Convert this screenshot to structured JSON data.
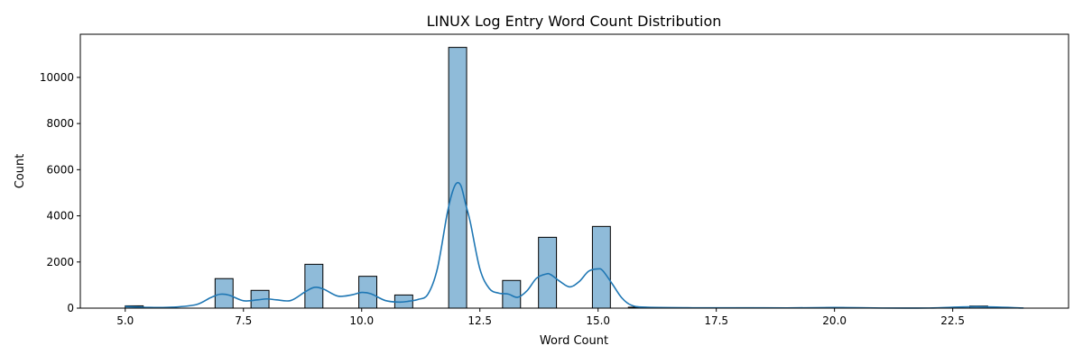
{
  "chart_data": {
    "type": "bar",
    "title": "LINUX Log Entry Word Count Distribution",
    "xlabel": "Word Count",
    "ylabel": "Count",
    "xlim": [
      4.05,
      24.95
    ],
    "ylim": [
      0,
      11870
    ],
    "x_ticks": [
      5.0,
      7.5,
      10.0,
      12.5,
      15.0,
      17.5,
      20.0,
      22.5
    ],
    "x_tick_labels": [
      "5.0",
      "7.5",
      "10.0",
      "12.5",
      "15.0",
      "17.5",
      "20.0",
      "22.5"
    ],
    "y_ticks": [
      0,
      2000,
      4000,
      6000,
      8000,
      10000
    ],
    "y_tick_labels": [
      "0",
      "2000",
      "4000",
      "6000",
      "8000",
      "10000"
    ],
    "bin_width": 0.38,
    "bins": [
      {
        "x0": 5.0,
        "count": 100
      },
      {
        "x0": 6.9,
        "count": 1280
      },
      {
        "x0": 7.66,
        "count": 770
      },
      {
        "x0": 8.8,
        "count": 1900
      },
      {
        "x0": 9.94,
        "count": 1380
      },
      {
        "x0": 10.7,
        "count": 570
      },
      {
        "x0": 11.84,
        "count": 11300
      },
      {
        "x0": 12.98,
        "count": 1200
      },
      {
        "x0": 13.74,
        "count": 3070
      },
      {
        "x0": 14.88,
        "count": 3540
      },
      {
        "x0": 15.64,
        "count": 40
      },
      {
        "x0": 16.78,
        "count": 15
      },
      {
        "x0": 17.92,
        "count": 20
      },
      {
        "x0": 19.82,
        "count": 25
      },
      {
        "x0": 22.86,
        "count": 90
      }
    ],
    "kde": {
      "x": [
        5.0,
        5.5,
        6.0,
        6.5,
        6.8,
        7.0,
        7.2,
        7.5,
        7.8,
        8.0,
        8.2,
        8.5,
        8.8,
        9.0,
        9.2,
        9.5,
        9.8,
        10.0,
        10.2,
        10.5,
        10.8,
        11.0,
        11.2,
        11.4,
        11.6,
        11.8,
        11.9,
        12.0,
        12.1,
        12.2,
        12.3,
        12.5,
        12.7,
        12.9,
        13.1,
        13.3,
        13.5,
        13.7,
        13.9,
        14.0,
        14.2,
        14.4,
        14.6,
        14.8,
        15.0,
        15.1,
        15.3,
        15.5,
        15.7,
        16.0,
        17.0,
        18.0,
        19.0,
        20.0,
        21.0,
        22.0,
        23.0,
        24.0
      ],
      "y": [
        70,
        30,
        40,
        150,
        450,
        600,
        560,
        320,
        360,
        400,
        360,
        330,
        700,
        900,
        820,
        520,
        580,
        680,
        620,
        330,
        260,
        300,
        380,
        600,
        1700,
        4000,
        4900,
        5400,
        5300,
        4500,
        3700,
        1700,
        850,
        650,
        610,
        470,
        760,
        1300,
        1480,
        1450,
        1150,
        920,
        1150,
        1600,
        1700,
        1620,
        1050,
        450,
        130,
        40,
        15,
        15,
        10,
        25,
        5,
        5,
        60,
        5
      ],
      "color": "#1f77b4"
    },
    "bar_fill": "#1f77b4",
    "bar_fill_opacity": 0.5,
    "bar_edge": "#000000",
    "grid": false,
    "legend": "none"
  }
}
